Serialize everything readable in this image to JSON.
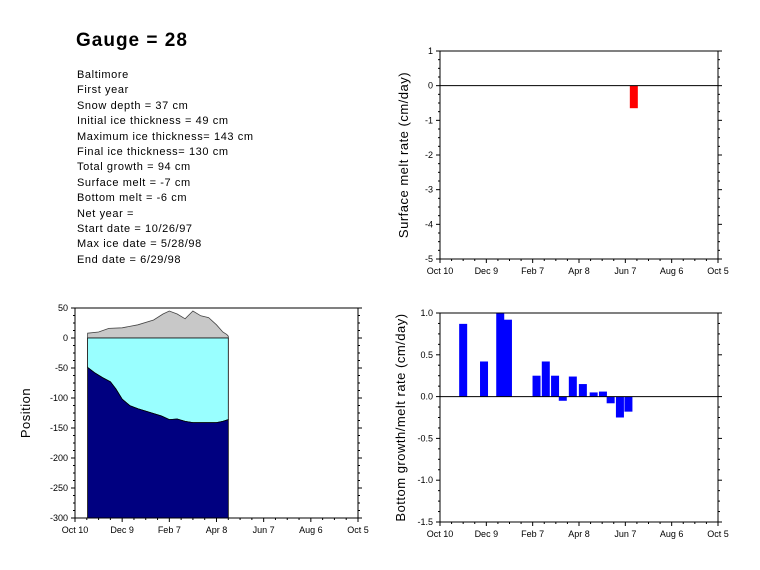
{
  "title": "Gauge = 28",
  "info_lines": [
    "Baltimore",
    "First year",
    "Snow depth = 37 cm",
    "Initial ice thickness = 49 cm",
    "Maximum ice thickness= 143 cm",
    "Final ice thickness= 130 cm",
    "Total growth = 94 cm",
    "Surface melt = -7 cm",
    "Bottom melt = -6 cm",
    "Net year =",
    "Start date = 10/26/97",
    "Max ice date = 5/28/98",
    "End date = 6/29/98"
  ],
  "chart_data": [
    {
      "id": "surface-melt",
      "type": "bar",
      "ylabel": "Surface melt rate (cm/day)",
      "xlabel": "",
      "x_ticks": [
        "Oct 10",
        "Dec 9",
        "Feb 7",
        "Apr 8",
        "Jun 7",
        "Aug 6",
        "Oct 5"
      ],
      "x_range_days": [
        0,
        360
      ],
      "ylim": [
        -5,
        1
      ],
      "y_ticks": [
        1,
        0,
        -1,
        -2,
        -3,
        -4,
        -5
      ],
      "bar_color": "#ff0000",
      "bars": [
        {
          "day": 251,
          "value": -0.65
        }
      ]
    },
    {
      "id": "position",
      "type": "area",
      "ylabel": "Position",
      "xlabel": "",
      "x_ticks": [
        "Oct 10",
        "Dec 9",
        "Feb 7",
        "Apr 8",
        "Jun 7",
        "Aug 6",
        "Oct 5"
      ],
      "x_range_days": [
        0,
        360
      ],
      "ylim": [
        -300,
        50
      ],
      "y_ticks": [
        50,
        0,
        -50,
        -100,
        -150,
        -200,
        -250,
        -300
      ],
      "colors": {
        "snow": "#c8c8c8",
        "ice_upper": "#99ffff",
        "ice_lower": "#000080"
      },
      "snow_top": [
        [
          16,
          8
        ],
        [
          30,
          10
        ],
        [
          43,
          16
        ],
        [
          60,
          17
        ],
        [
          80,
          22
        ],
        [
          100,
          30
        ],
        [
          112,
          40
        ],
        [
          120,
          45
        ],
        [
          130,
          40
        ],
        [
          140,
          32
        ],
        [
          150,
          45
        ],
        [
          160,
          37
        ],
        [
          170,
          34
        ],
        [
          180,
          22
        ],
        [
          188,
          10
        ],
        [
          193,
          6
        ],
        [
          195,
          3
        ]
      ],
      "ice_bottom": [
        [
          16,
          -49
        ],
        [
          25,
          -58
        ],
        [
          35,
          -66
        ],
        [
          45,
          -73
        ],
        [
          52,
          -85
        ],
        [
          60,
          -102
        ],
        [
          70,
          -113
        ],
        [
          80,
          -118
        ],
        [
          95,
          -124
        ],
        [
          110,
          -130
        ],
        [
          120,
          -136
        ],
        [
          130,
          -135
        ],
        [
          140,
          -139
        ],
        [
          150,
          -141
        ],
        [
          165,
          -141
        ],
        [
          180,
          -141
        ],
        [
          188,
          -139
        ],
        [
          195,
          -136
        ]
      ]
    },
    {
      "id": "bottom-growth",
      "type": "bar",
      "ylabel": "Bottom growth/melt rate (cm/day)",
      "xlabel": "",
      "x_ticks": [
        "Oct 10",
        "Dec 9",
        "Feb 7",
        "Apr 8",
        "Jun 7",
        "Aug 6",
        "Oct 5"
      ],
      "x_range_days": [
        0,
        360
      ],
      "ylim": [
        -1.5,
        1.0
      ],
      "y_ticks": [
        1.0,
        0.5,
        0.0,
        -0.5,
        -1.0,
        -1.5
      ],
      "bar_color": "#0000ff",
      "bars": [
        {
          "day": 30,
          "value": 0.87
        },
        {
          "day": 57,
          "value": 0.42
        },
        {
          "day": 78,
          "value": 1.0
        },
        {
          "day": 88,
          "value": 0.92
        },
        {
          "day": 125,
          "value": 0.25
        },
        {
          "day": 137,
          "value": 0.42
        },
        {
          "day": 149,
          "value": 0.25
        },
        {
          "day": 159,
          "value": -0.05
        },
        {
          "day": 172,
          "value": 0.24
        },
        {
          "day": 185,
          "value": 0.15
        },
        {
          "day": 199,
          "value": 0.05
        },
        {
          "day": 211,
          "value": 0.06
        },
        {
          "day": 221,
          "value": -0.08
        },
        {
          "day": 233,
          "value": -0.25
        },
        {
          "day": 244,
          "value": -0.18
        }
      ]
    }
  ]
}
